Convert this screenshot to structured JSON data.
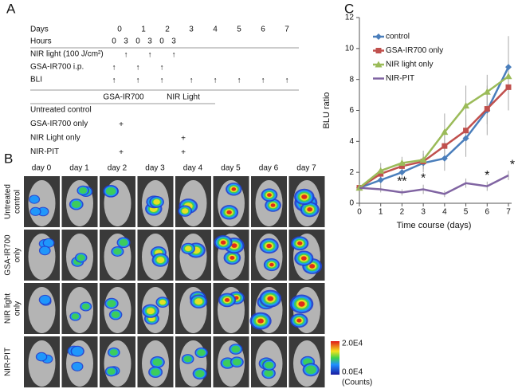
{
  "panel_labels": [
    "A",
    "B",
    "C"
  ],
  "schedule": {
    "days_label": "Days",
    "days": [
      "0",
      "1",
      "2",
      "3",
      "4",
      "5",
      "6",
      "7"
    ],
    "hours_label": "Hours",
    "hours": [
      "0",
      "3",
      "0",
      "3",
      "0",
      "3"
    ],
    "rows": [
      {
        "label": "NIR light (100 J/cm²)",
        "marks": [
          null,
          "↑",
          null,
          "↑",
          null,
          "↑",
          null,
          null,
          null,
          null,
          null
        ]
      },
      {
        "label": "GSA-IR700 i.p.",
        "marks": [
          "↑",
          null,
          "↑",
          null,
          "↑",
          null,
          null,
          null,
          null,
          null,
          null
        ]
      },
      {
        "label": "BLI",
        "marks": [
          "↑",
          null,
          "↑",
          null,
          "↑",
          null,
          "↑",
          "↑",
          "↑",
          "↑",
          "↑"
        ]
      }
    ]
  },
  "groups": {
    "header": [
      "GSA-IR700",
      "NIR Light"
    ],
    "rows": [
      {
        "label": "Untreated control",
        "cells": [
          null,
          null
        ]
      },
      {
        "label": "GSA-IR700 only",
        "cells": [
          "+",
          null
        ]
      },
      {
        "label": "NIR Light only",
        "cells": [
          null,
          "+"
        ]
      },
      {
        "label": "NIR-PIT",
        "cells": [
          "+",
          "+"
        ]
      }
    ]
  },
  "imaging": {
    "columns": [
      "day 0",
      "day 1",
      "day 2",
      "day 3",
      "day 4",
      "day 5",
      "day 6",
      "day 7"
    ],
    "rows": [
      [
        "Untreated",
        "control"
      ],
      [
        "GSA-IR700",
        "only"
      ],
      [
        "NIR light",
        "only"
      ],
      [
        "NIR-PIT"
      ]
    ],
    "colorbar": {
      "max": "2.0E4",
      "min": "0.0E4",
      "unit": "(Counts)"
    }
  },
  "chart_data": {
    "type": "line",
    "xlabel": "Time course (days)",
    "ylabel": "BLU ratio",
    "x": [
      0,
      1,
      2,
      3,
      4,
      5,
      6,
      7
    ],
    "xlim": [
      0,
      7
    ],
    "xticks": [
      0,
      1,
      2,
      3,
      4,
      5,
      6,
      7
    ],
    "ylim": [
      0,
      12
    ],
    "yticks": [
      0,
      2,
      4,
      6,
      8,
      10,
      12
    ],
    "grid": false,
    "legend": "top-left",
    "series": [
      {
        "name": "control",
        "color": "#4a7ebb",
        "marker": "diamond",
        "values": [
          1,
          1.5,
          2.0,
          2.6,
          2.9,
          4.2,
          6.0,
          8.8
        ],
        "errors": [
          0,
          0.5,
          0.5,
          0.6,
          0.8,
          1.2,
          1.6,
          2.0
        ]
      },
      {
        "name": "GSA-IR700 only",
        "color": "#c0504d",
        "marker": "square",
        "values": [
          1,
          1.9,
          2.4,
          2.7,
          3.7,
          4.7,
          6.1,
          7.5
        ],
        "errors": [
          0,
          0.4,
          0.4,
          0.5,
          0.9,
          1.0,
          1.0,
          1.5
        ]
      },
      {
        "name": "NIR light only",
        "color": "#9bbb59",
        "marker": "triangle",
        "values": [
          1,
          2.1,
          2.6,
          2.8,
          4.6,
          6.3,
          7.2,
          8.2
        ],
        "errors": [
          0,
          0.5,
          0.4,
          0.6,
          1.2,
          1.3,
          1.1,
          2.0
        ]
      },
      {
        "name": "NIR-PIT",
        "color": "#8064a2",
        "values": [
          1,
          0.9,
          0.7,
          0.9,
          0.6,
          1.3,
          1.1,
          1.8
        ],
        "errors": [
          0,
          0.2,
          0.2,
          0.3,
          0.2,
          0.3,
          0.3,
          0.3
        ]
      }
    ],
    "annotations": [
      {
        "x": 2,
        "text": "**"
      },
      {
        "x": 3,
        "text": "*"
      },
      {
        "x": 6,
        "text": "*"
      },
      {
        "x": 7,
        "text": "*"
      }
    ]
  }
}
